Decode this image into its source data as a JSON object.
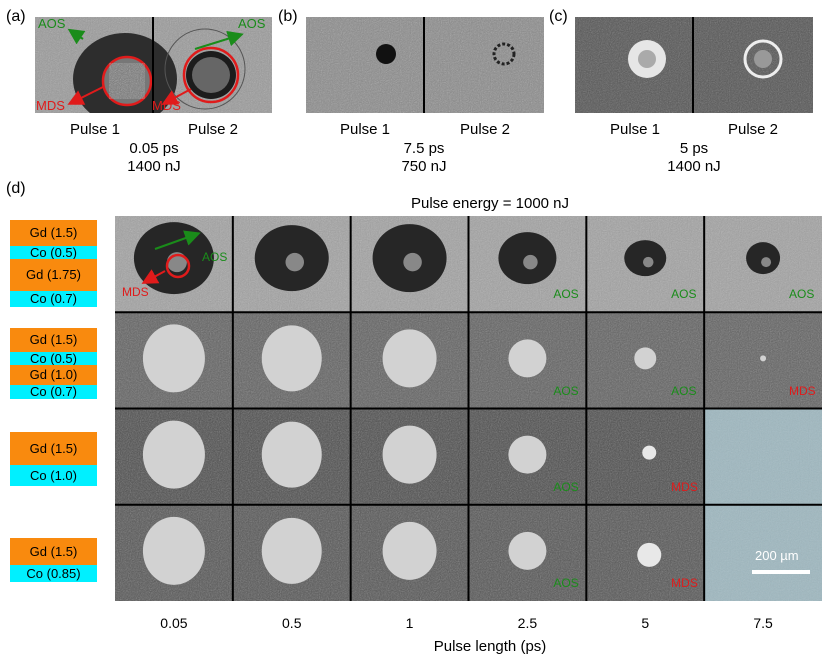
{
  "panel_labels": [
    "(a)",
    "(b)",
    "(c)",
    "(d)"
  ],
  "top_panels": [
    {
      "pulse1": "Pulse 1",
      "pulse2": "Pulse 2",
      "duration": "0.05 ps",
      "energy": "1400 nJ",
      "aos": "AOS",
      "mds": "MDS"
    },
    {
      "pulse1": "Pulse 1",
      "pulse2": "Pulse 2",
      "duration": "7.5 ps",
      "energy": "750 nJ"
    },
    {
      "pulse1": "Pulse 1",
      "pulse2": "Pulse 2",
      "duration": "5 ps",
      "energy": "1400 nJ"
    }
  ],
  "grid": {
    "title": "Pulse energy = 1000 nJ",
    "xlabel": "Pulse length (ps)",
    "columns": [
      "0.05",
      "0.5",
      "1",
      "2.5",
      "5",
      "7.5"
    ],
    "first_cell": {
      "aos": "AOS",
      "mds": "MDS"
    },
    "row_tags": [
      [
        "",
        "",
        "",
        "AOS",
        "AOS",
        "AOS"
      ],
      [
        "",
        "",
        "",
        "AOS",
        "AOS",
        "MDS"
      ],
      [
        "",
        "",
        "",
        "AOS",
        "MDS",
        ""
      ],
      [
        "",
        "",
        "",
        "AOS",
        "MDS",
        ""
      ]
    ],
    "scale_bar": "200 µm"
  },
  "stacks": [
    [
      {
        "t": "gd",
        "label": "Gd (1.5)"
      },
      {
        "t": "co",
        "label": "Co (0.5)"
      },
      {
        "t": "gd",
        "label": "Gd (1.75)"
      },
      {
        "t": "co",
        "label": "Co (0.7)"
      }
    ],
    [
      {
        "t": "gd",
        "label": "Gd (1.5)"
      },
      {
        "t": "co",
        "label": "Co (0.5)"
      },
      {
        "t": "gd",
        "label": "Gd (1.0)"
      },
      {
        "t": "co",
        "label": "Co (0.7)"
      }
    ],
    [
      {
        "t": "gd",
        "label": "Gd (1.5)"
      },
      {
        "t": "co",
        "label": "Co (1.0)"
      }
    ],
    [
      {
        "t": "gd",
        "label": "Gd (1.5)"
      },
      {
        "t": "co",
        "label": "Co (0.85)"
      }
    ]
  ],
  "colors": {
    "aos": "#1a8c1a",
    "mds": "#e01b1b",
    "gd": "#f98a0e",
    "co": "#00f0ff",
    "empty_cell": "#9fb8c0"
  }
}
